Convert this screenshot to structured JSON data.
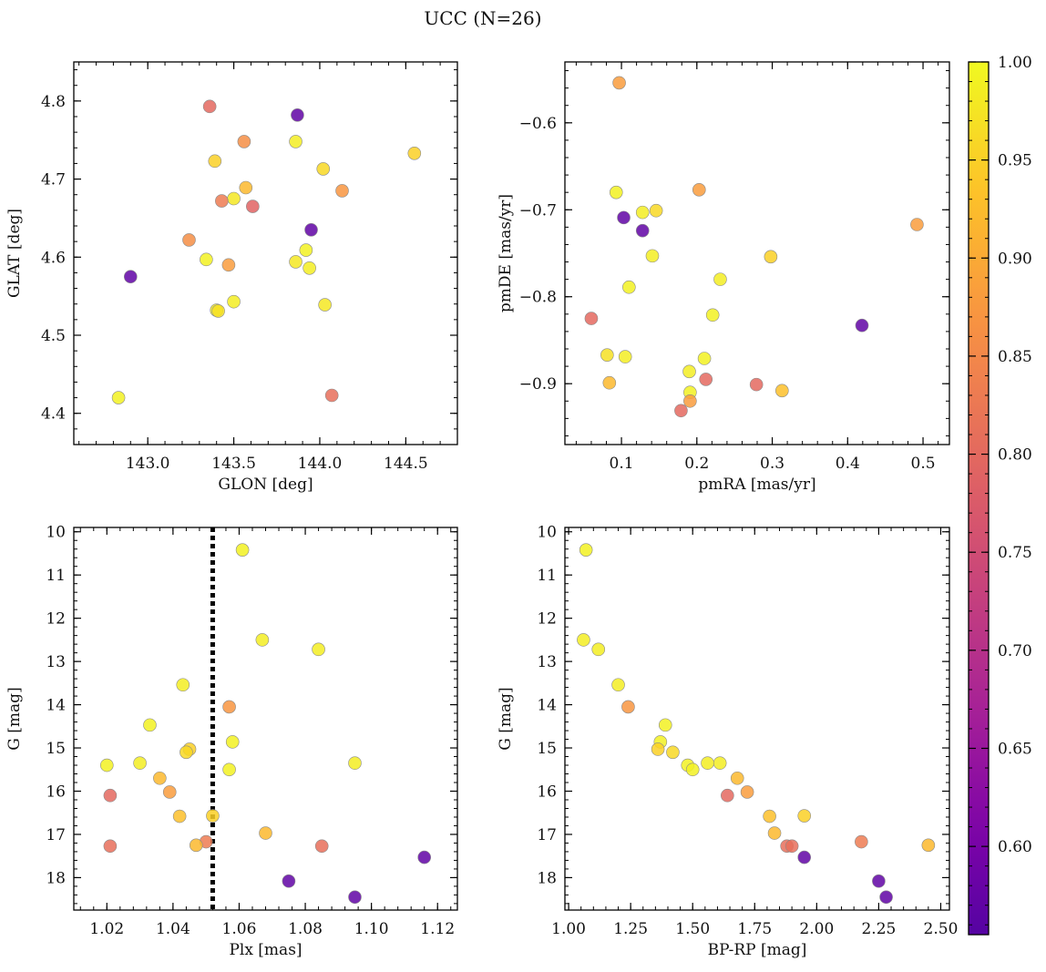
{
  "chart_data": {
    "title": "UCC (N=26)",
    "colorbar": {
      "range": [
        0.555,
        1.0
      ],
      "ticks": [
        0.6,
        0.65,
        0.7,
        0.75,
        0.8,
        0.85,
        0.9,
        0.95,
        1.0
      ],
      "tick_labels": [
        "0.60",
        "0.65",
        "0.70",
        "0.75",
        "0.80",
        "0.85",
        "0.90",
        "0.95",
        "1.00"
      ],
      "colormap": "plasma"
    },
    "panels": [
      {
        "type": "scatter",
        "xlabel": "GLON [deg]",
        "ylabel": "GLAT [deg]",
        "xlim": [
          142.57,
          144.8
        ],
        "ylim": [
          4.36,
          4.85
        ],
        "y_inverted": false,
        "xticks": [
          143.0,
          143.5,
          144.0,
          144.5
        ],
        "xtick_labels": [
          "143.0",
          "143.5",
          "144.0",
          "144.5"
        ],
        "yticks": [
          4.4,
          4.5,
          4.6,
          4.7,
          4.8
        ],
        "ytick_labels": [
          "4.4",
          "4.5",
          "4.6",
          "4.7",
          "4.8"
        ],
        "x_minor_step": 0.1,
        "y_minor_step": 0.02,
        "points": [
          {
            "x": 143.36,
            "y": 4.793,
            "c": 0.8
          },
          {
            "x": 143.87,
            "y": 4.782,
            "c": 0.57
          },
          {
            "x": 143.56,
            "y": 4.748,
            "c": 0.86
          },
          {
            "x": 143.86,
            "y": 4.748,
            "c": 0.985
          },
          {
            "x": 144.55,
            "y": 4.733,
            "c": 0.95
          },
          {
            "x": 143.39,
            "y": 4.723,
            "c": 0.95
          },
          {
            "x": 144.02,
            "y": 4.713,
            "c": 0.96
          },
          {
            "x": 143.57,
            "y": 4.689,
            "c": 0.92
          },
          {
            "x": 144.13,
            "y": 4.685,
            "c": 0.87
          },
          {
            "x": 143.5,
            "y": 4.675,
            "c": 0.98
          },
          {
            "x": 143.43,
            "y": 4.672,
            "c": 0.83
          },
          {
            "x": 143.61,
            "y": 4.665,
            "c": 0.79
          },
          {
            "x": 143.95,
            "y": 4.635,
            "c": 0.57
          },
          {
            "x": 143.24,
            "y": 4.622,
            "c": 0.86
          },
          {
            "x": 143.92,
            "y": 4.609,
            "c": 0.99
          },
          {
            "x": 143.34,
            "y": 4.597,
            "c": 0.99
          },
          {
            "x": 143.86,
            "y": 4.594,
            "c": 0.98
          },
          {
            "x": 143.47,
            "y": 4.59,
            "c": 0.88
          },
          {
            "x": 143.94,
            "y": 4.586,
            "c": 0.985
          },
          {
            "x": 142.9,
            "y": 4.575,
            "c": 0.57
          },
          {
            "x": 143.5,
            "y": 4.543,
            "c": 0.985
          },
          {
            "x": 144.03,
            "y": 4.539,
            "c": 0.98
          },
          {
            "x": 143.4,
            "y": 4.532,
            "c": 0.985
          },
          {
            "x": 143.41,
            "y": 4.531,
            "c": 0.97
          },
          {
            "x": 142.83,
            "y": 4.42,
            "c": 0.99
          },
          {
            "x": 144.07,
            "y": 4.423,
            "c": 0.81
          }
        ]
      },
      {
        "type": "scatter",
        "xlabel": "pmRA [mas/yr]",
        "ylabel": "pmDE [mas/yr]",
        "xlim": [
          0.025,
          0.535
        ],
        "ylim": [
          -0.97,
          -0.53
        ],
        "y_inverted": false,
        "xticks": [
          0.1,
          0.2,
          0.3,
          0.4,
          0.5
        ],
        "xtick_labels": [
          "0.1",
          "0.2",
          "0.3",
          "0.4",
          "0.5"
        ],
        "yticks": [
          -0.9,
          -0.8,
          -0.7,
          -0.6
        ],
        "ytick_labels": [
          "−0.9",
          "−0.8",
          "−0.7",
          "−0.6"
        ],
        "x_minor_step": 0.02,
        "y_minor_step": 0.02,
        "points": [
          {
            "x": 0.097,
            "y": -0.554,
            "c": 0.88
          },
          {
            "x": 0.103,
            "y": -0.709,
            "c": 0.57
          },
          {
            "x": 0.093,
            "y": -0.68,
            "c": 0.99
          },
          {
            "x": 0.128,
            "y": -0.724,
            "c": 0.57
          },
          {
            "x": 0.128,
            "y": -0.703,
            "c": 0.985
          },
          {
            "x": 0.146,
            "y": -0.701,
            "c": 0.96
          },
          {
            "x": 0.203,
            "y": -0.677,
            "c": 0.88
          },
          {
            "x": 0.492,
            "y": -0.717,
            "c": 0.88
          },
          {
            "x": 0.141,
            "y": -0.753,
            "c": 0.985
          },
          {
            "x": 0.298,
            "y": -0.754,
            "c": 0.95
          },
          {
            "x": 0.231,
            "y": -0.78,
            "c": 0.985
          },
          {
            "x": 0.11,
            "y": -0.789,
            "c": 0.99
          },
          {
            "x": 0.06,
            "y": -0.825,
            "c": 0.8
          },
          {
            "x": 0.221,
            "y": -0.821,
            "c": 0.99
          },
          {
            "x": 0.419,
            "y": -0.833,
            "c": 0.57
          },
          {
            "x": 0.081,
            "y": -0.867,
            "c": 0.97
          },
          {
            "x": 0.105,
            "y": -0.869,
            "c": 0.985
          },
          {
            "x": 0.21,
            "y": -0.871,
            "c": 0.99
          },
          {
            "x": 0.19,
            "y": -0.886,
            "c": 0.985
          },
          {
            "x": 0.084,
            "y": -0.899,
            "c": 0.92
          },
          {
            "x": 0.212,
            "y": -0.895,
            "c": 0.8
          },
          {
            "x": 0.279,
            "y": -0.901,
            "c": 0.8
          },
          {
            "x": 0.313,
            "y": -0.908,
            "c": 0.93
          },
          {
            "x": 0.191,
            "y": -0.91,
            "c": 0.99
          },
          {
            "x": 0.191,
            "y": -0.92,
            "c": 0.88
          },
          {
            "x": 0.179,
            "y": -0.931,
            "c": 0.8
          }
        ]
      },
      {
        "type": "scatter",
        "xlabel": "Plx [mas]",
        "ylabel": "G [mag]",
        "xlim": [
          1.01,
          1.126
        ],
        "ylim": [
          18.75,
          9.9
        ],
        "y_inverted": true,
        "xticks": [
          1.02,
          1.04,
          1.06,
          1.08,
          1.1,
          1.12
        ],
        "xtick_labels": [
          "1.02",
          "1.04",
          "1.06",
          "1.08",
          "1.10",
          "1.12"
        ],
        "yticks": [
          10,
          11,
          12,
          13,
          14,
          15,
          16,
          17,
          18
        ],
        "ytick_labels": [
          "10",
          "11",
          "12",
          "13",
          "14",
          "15",
          "16",
          "17",
          "18"
        ],
        "x_minor_step": 0.004,
        "y_minor_step": 0.2,
        "vline": {
          "x": 1.052,
          "style": "dotted"
        },
        "points": [
          {
            "x": 1.061,
            "y": 10.42,
            "c": 0.99
          },
          {
            "x": 1.067,
            "y": 12.5,
            "c": 0.985
          },
          {
            "x": 1.084,
            "y": 12.72,
            "c": 0.985
          },
          {
            "x": 1.043,
            "y": 13.54,
            "c": 0.985
          },
          {
            "x": 1.057,
            "y": 14.05,
            "c": 0.87
          },
          {
            "x": 1.033,
            "y": 14.47,
            "c": 0.99
          },
          {
            "x": 1.058,
            "y": 14.86,
            "c": 0.99
          },
          {
            "x": 1.045,
            "y": 15.03,
            "c": 0.95
          },
          {
            "x": 1.044,
            "y": 15.1,
            "c": 0.96
          },
          {
            "x": 1.03,
            "y": 15.35,
            "c": 0.985
          },
          {
            "x": 1.095,
            "y": 15.35,
            "c": 0.985
          },
          {
            "x": 1.02,
            "y": 15.4,
            "c": 0.99
          },
          {
            "x": 1.057,
            "y": 15.5,
            "c": 0.99
          },
          {
            "x": 1.036,
            "y": 15.7,
            "c": 0.92
          },
          {
            "x": 1.039,
            "y": 16.02,
            "c": 0.88
          },
          {
            "x": 1.021,
            "y": 16.1,
            "c": 0.8
          },
          {
            "x": 1.042,
            "y": 16.58,
            "c": 0.93
          },
          {
            "x": 1.052,
            "y": 16.57,
            "c": 0.95
          },
          {
            "x": 1.068,
            "y": 16.97,
            "c": 0.92
          },
          {
            "x": 1.05,
            "y": 17.17,
            "c": 0.83
          },
          {
            "x": 1.047,
            "y": 17.25,
            "c": 0.92
          },
          {
            "x": 1.021,
            "y": 17.27,
            "c": 0.81
          },
          {
            "x": 1.085,
            "y": 17.27,
            "c": 0.81
          },
          {
            "x": 1.116,
            "y": 17.53,
            "c": 0.57
          },
          {
            "x": 1.075,
            "y": 18.08,
            "c": 0.57
          },
          {
            "x": 1.095,
            "y": 18.45,
            "c": 0.57
          }
        ]
      },
      {
        "type": "scatter",
        "xlabel": "BP-RP [mag]",
        "ylabel": "G [mag]",
        "xlim": [
          0.985,
          2.535
        ],
        "ylim": [
          18.75,
          9.9
        ],
        "y_inverted": true,
        "xticks": [
          1.0,
          1.25,
          1.5,
          1.75,
          2.0,
          2.25,
          2.5
        ],
        "xtick_labels": [
          "1.00",
          "1.25",
          "1.50",
          "1.75",
          "2.00",
          "2.25",
          "2.50"
        ],
        "yticks": [
          10,
          11,
          12,
          13,
          14,
          15,
          16,
          17,
          18
        ],
        "ytick_labels": [
          "10",
          "11",
          "12",
          "13",
          "14",
          "15",
          "16",
          "17",
          "18"
        ],
        "x_minor_step": 0.05,
        "y_minor_step": 0.2,
        "points": [
          {
            "x": 1.07,
            "y": 10.42,
            "c": 0.99
          },
          {
            "x": 1.06,
            "y": 12.5,
            "c": 0.985
          },
          {
            "x": 1.12,
            "y": 12.72,
            "c": 0.985
          },
          {
            "x": 1.2,
            "y": 13.54,
            "c": 0.985
          },
          {
            "x": 1.24,
            "y": 14.05,
            "c": 0.87
          },
          {
            "x": 1.39,
            "y": 14.47,
            "c": 0.99
          },
          {
            "x": 1.37,
            "y": 14.86,
            "c": 0.99
          },
          {
            "x": 1.36,
            "y": 15.03,
            "c": 0.95
          },
          {
            "x": 1.42,
            "y": 15.1,
            "c": 0.96
          },
          {
            "x": 1.56,
            "y": 15.35,
            "c": 0.985
          },
          {
            "x": 1.61,
            "y": 15.35,
            "c": 0.985
          },
          {
            "x": 1.48,
            "y": 15.4,
            "c": 0.99
          },
          {
            "x": 1.5,
            "y": 15.5,
            "c": 0.99
          },
          {
            "x": 1.68,
            "y": 15.7,
            "c": 0.92
          },
          {
            "x": 1.72,
            "y": 16.02,
            "c": 0.88
          },
          {
            "x": 1.64,
            "y": 16.1,
            "c": 0.8
          },
          {
            "x": 1.81,
            "y": 16.58,
            "c": 0.93
          },
          {
            "x": 1.95,
            "y": 16.57,
            "c": 0.95
          },
          {
            "x": 1.83,
            "y": 16.97,
            "c": 0.92
          },
          {
            "x": 2.18,
            "y": 17.17,
            "c": 0.83
          },
          {
            "x": 2.45,
            "y": 17.25,
            "c": 0.92
          },
          {
            "x": 1.88,
            "y": 17.27,
            "c": 0.81
          },
          {
            "x": 1.9,
            "y": 17.27,
            "c": 0.81
          },
          {
            "x": 1.95,
            "y": 17.53,
            "c": 0.57
          },
          {
            "x": 2.25,
            "y": 18.08,
            "c": 0.57
          },
          {
            "x": 2.28,
            "y": 18.45,
            "c": 0.57
          }
        ]
      }
    ]
  }
}
